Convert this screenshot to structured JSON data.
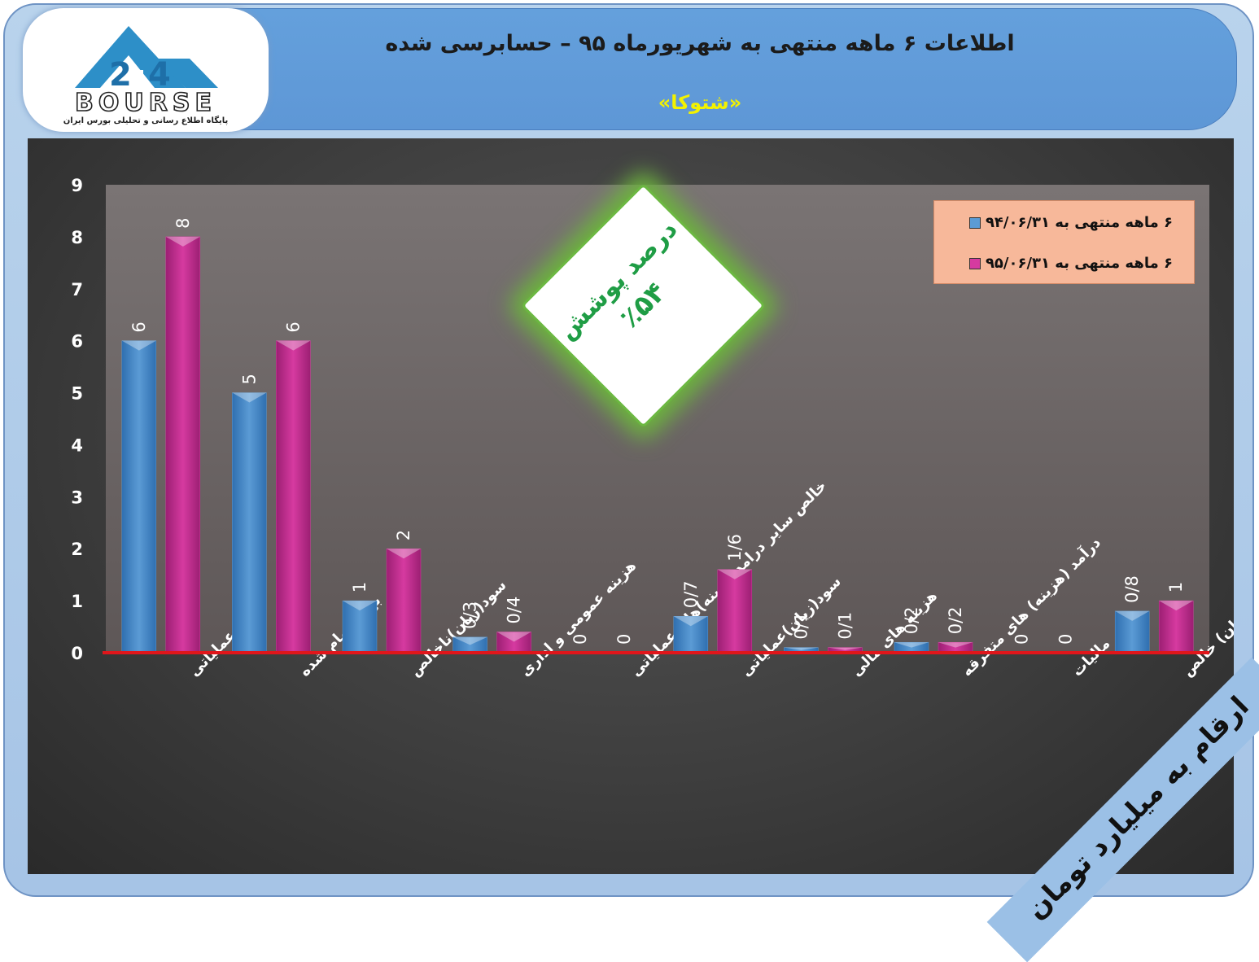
{
  "header": {
    "title": "اطلاعات ۶  ماهه منتهی به شهریورماه ۹۵ – حسابرسی شده",
    "subtitle": "«شتوکا»"
  },
  "logo": {
    "brand": "BOURSE",
    "tagline": "پایگاه اطلاع رسانی و تحلیلی بورس ایران"
  },
  "coverage": {
    "label": "درصد پوشش",
    "value": "٪۵۴"
  },
  "unit_note": "ارقام به میلیارد تومان",
  "colors": {
    "series1": "#5b9bd5",
    "series2": "#d63aa0",
    "baseline": "#e0161b",
    "axis_text": "#ffffff"
  },
  "chart_data": {
    "type": "bar",
    "categories": [
      "درآمد عملیاتی",
      "بهای تمام شده",
      "سود(زیان)ناخالص",
      "هزینه عمومی و اداری",
      "خالص سایر درامد(هزینه)های عملیاتی",
      "سود(زیان)عملیاتی",
      "هزینه های مالی",
      "درآمد (هزینه) های متفرقه",
      "مالیات",
      "سود(زیان) خالص"
    ],
    "series": [
      {
        "name": "۶ ماهه منتهی به ۹۴/۰۶/۳۱",
        "values": [
          6,
          5,
          1,
          0.3,
          0,
          0.7,
          0.1,
          0.2,
          0,
          0.8
        ],
        "labels": [
          "6",
          "5",
          "1",
          "0/3",
          "0",
          "0/7",
          "0/1",
          "0/2",
          "0",
          "0/8"
        ]
      },
      {
        "name": "۶ ماهه منتهی به ۹۵/۰۶/۳۱",
        "values": [
          8,
          6,
          2,
          0.4,
          0,
          1.6,
          0.1,
          0.2,
          0,
          1
        ],
        "labels": [
          "8",
          "6",
          "2",
          "0/4",
          "0",
          "1/6",
          "0/1",
          "0/2",
          "0",
          "1"
        ]
      }
    ],
    "yticks": [
      "0",
      "1",
      "2",
      "3",
      "4",
      "5",
      "6",
      "7",
      "8",
      "9"
    ],
    "ylim": [
      0,
      9
    ],
    "grid": false,
    "legend_position": "top-right"
  }
}
